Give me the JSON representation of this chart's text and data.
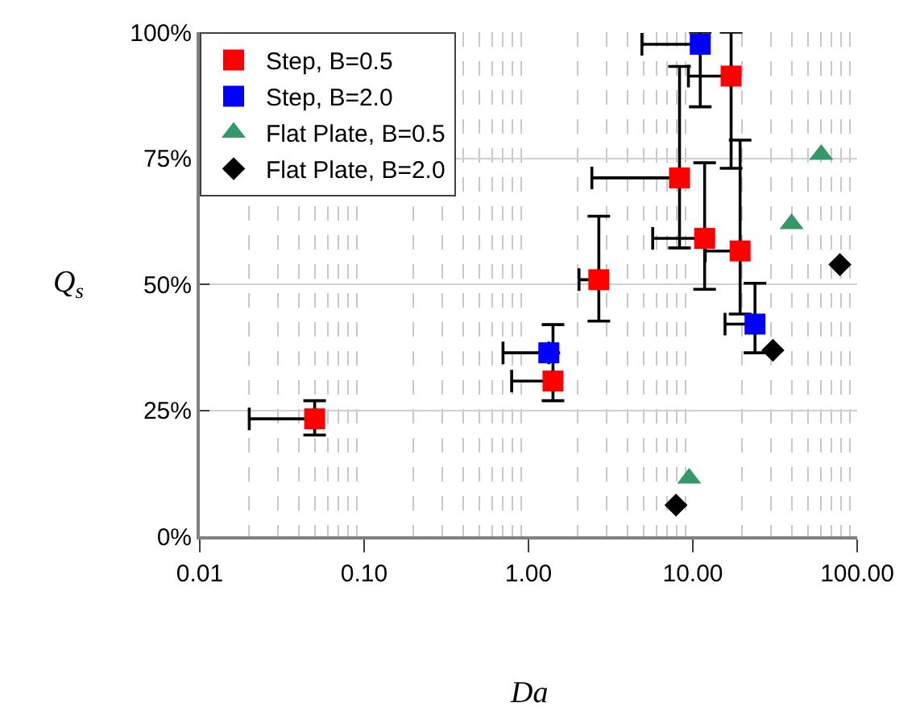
{
  "chart_data": {
    "type": "scatter",
    "xlabel": "Da",
    "ylabel": "Q$_{s}$",
    "log": "x",
    "grid": true,
    "legend": "top left",
    "xlim": [
      0.01,
      100
    ],
    "xticks": [
      0.01,
      {
        "value": 0.1,
        "label": "0.10"
      },
      {
        "value": 1,
        "label": "1.00"
      },
      {
        "value": 10,
        "label": "10.00"
      },
      {
        "value": 100,
        "label": "100.00"
      }
    ],
    "ylim": [
      0,
      100
    ],
    "yticks": [
      {
        "value": 0,
        "label": "0%"
      },
      {
        "value": 25,
        "label": "25%"
      },
      {
        "value": 50,
        "label": "50%"
      },
      {
        "value": 75,
        "label": "75%"
      },
      {
        "value": 100,
        "label": "100%"
      }
    ],
    "series": [
      {
        "name": "Step, B=0.5",
        "color": "#ff0000",
        "marker": "square",
        "x": [
          0.05,
          1.41,
          2.68,
          8.3,
          11.8,
          17.1,
          19.4
        ],
        "values": [
          23.3,
          30.8,
          50.9,
          71.1,
          59.1,
          91.3,
          56.6
        ],
        "errors": [
          [
            20.1,
            26.9
          ],
          [
            26.9,
            42.0
          ],
          [
            42.7,
            63.5
          ],
          [
            57.2,
            93.2
          ],
          [
            49.0,
            74.1
          ],
          [
            73.0,
            100
          ],
          [
            44.1,
            78.6
          ]
        ],
        "xerrors": [
          [
            0.02,
            0.05
          ],
          [
            0.79,
            1.41
          ],
          [
            2.03,
            2.68
          ],
          [
            2.43,
            8.3
          ],
          [
            5.7,
            11.8
          ],
          [
            9.4,
            17.1
          ],
          [
            11.9,
            19.4
          ]
        ]
      },
      {
        "name": "Step, B=2.0",
        "color": "#0000ff",
        "marker": "square",
        "x": [
          1.33,
          11.1,
          23.9
        ],
        "values": [
          36.4,
          97.6,
          42.1
        ],
        "errors": [
          null,
          [
            85.2,
            100
          ],
          [
            36.4,
            50.2
          ]
        ],
        "xerrors": [
          [
            0.7,
            1.33
          ],
          [
            4.9,
            11.1
          ],
          [
            15.7,
            23.9
          ]
        ]
      },
      {
        "name": "Flat Plate, B=0.5",
        "color": "#339966",
        "marker": "triangle",
        "x": [
          9.5,
          39.9,
          60.4
        ],
        "values": [
          11.5,
          62.0,
          75.7
        ]
      },
      {
        "name": "Flat Plate, B=2.0",
        "color": "#000000",
        "marker": "diamond",
        "x": [
          7.9,
          30.7,
          78.5
        ],
        "values": [
          6.2,
          36.9,
          53.9
        ]
      }
    ]
  }
}
